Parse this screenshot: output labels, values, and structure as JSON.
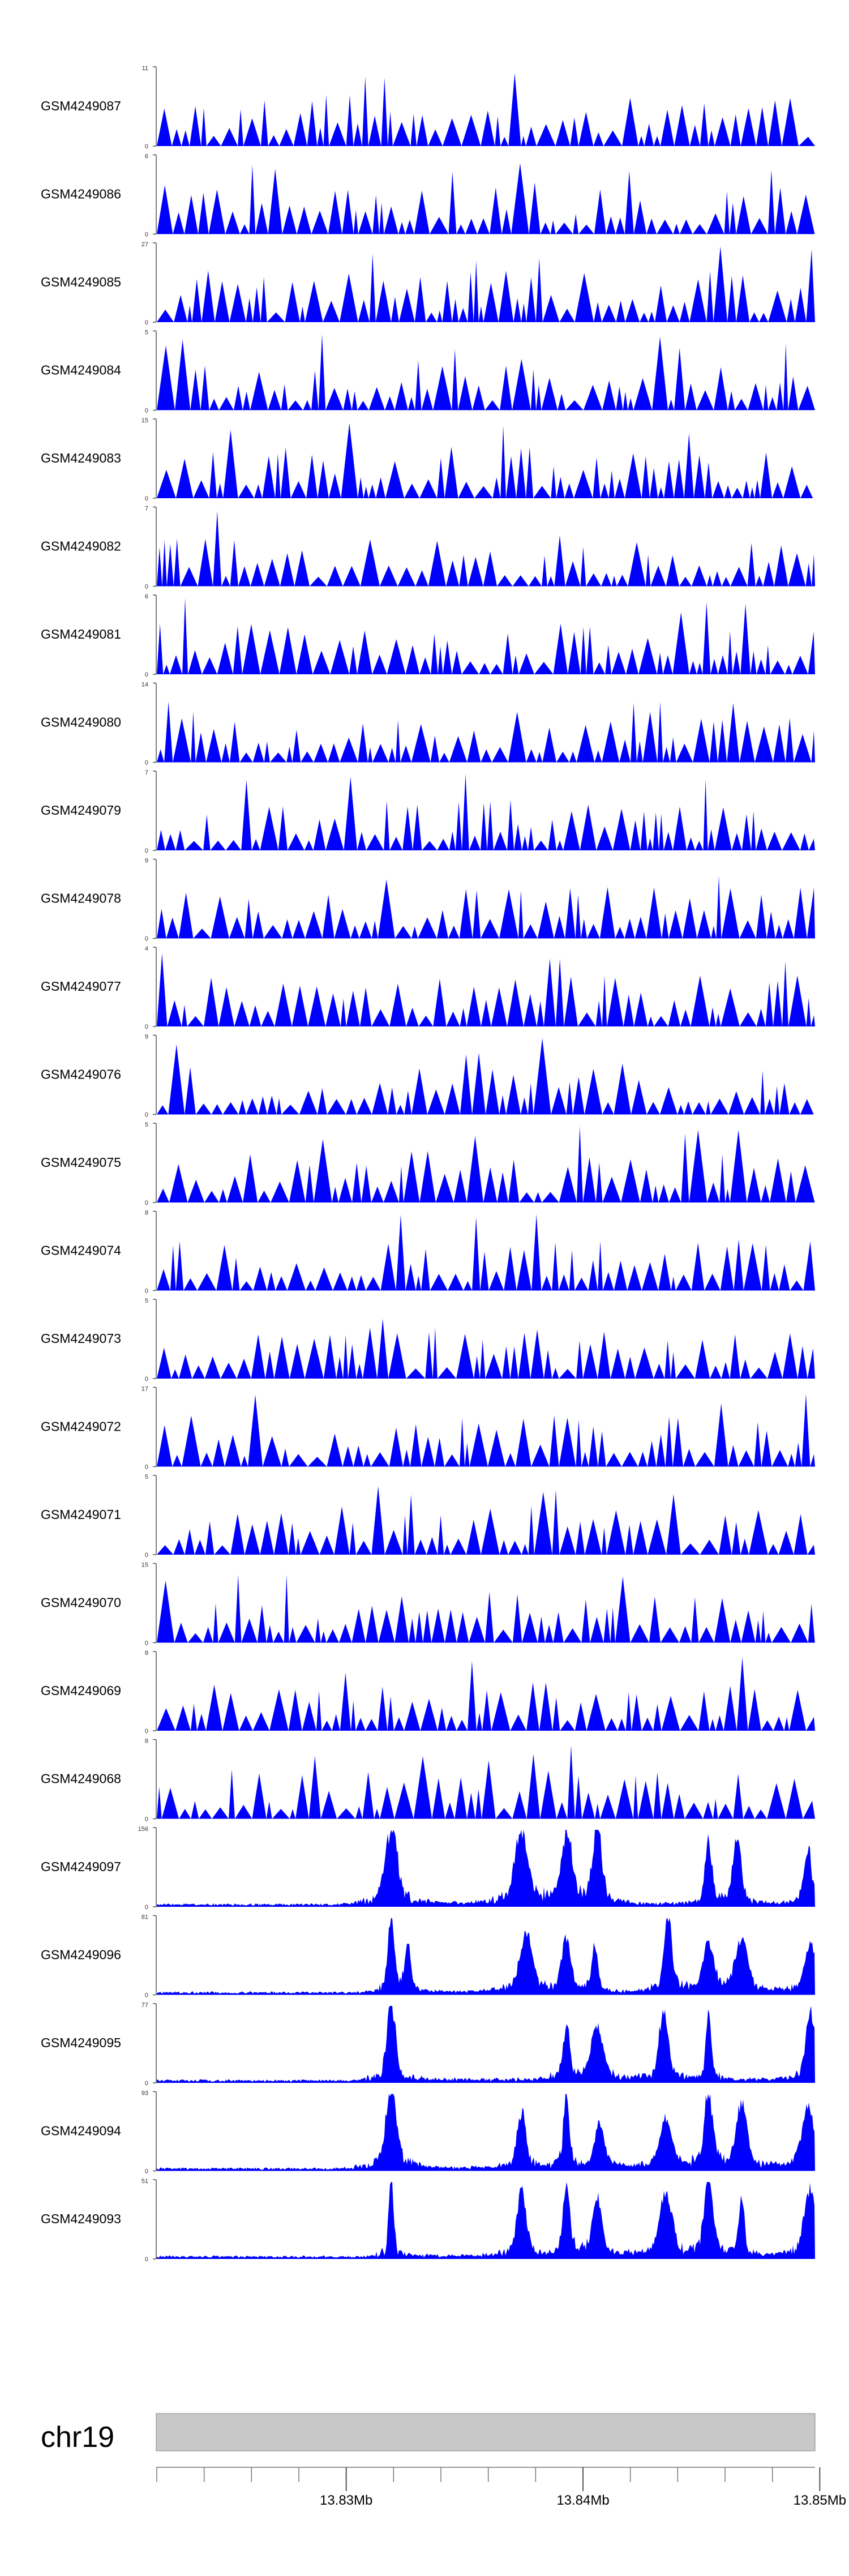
{
  "chart_data": {
    "type": "area",
    "x_axis": {
      "domain_bp": [
        13822000,
        13849800
      ],
      "ticks": [
        13830000,
        13840000,
        13850000
      ],
      "tick_labels": [
        "13.83Mb",
        "13.84Mb",
        "13.85Mb"
      ],
      "minor_tick_spacing_bp": 2000
    },
    "chromosome": "chr19",
    "fill_color": "#0000ff",
    "tracks": [
      {
        "name": "GSM4249087",
        "ymax": 11,
        "profile": "sparse"
      },
      {
        "name": "GSM4249086",
        "ymax": 6,
        "profile": "sparse"
      },
      {
        "name": "GSM4249085",
        "ymax": 27,
        "profile": "sparse"
      },
      {
        "name": "GSM4249084",
        "ymax": 5,
        "profile": "sparse"
      },
      {
        "name": "GSM4249083",
        "ymax": 15,
        "profile": "sparse"
      },
      {
        "name": "GSM4249082",
        "ymax": 7,
        "profile": "sparse"
      },
      {
        "name": "GSM4249081",
        "ymax": 6,
        "profile": "sparse"
      },
      {
        "name": "GSM4249080",
        "ymax": 14,
        "profile": "sparse"
      },
      {
        "name": "GSM4249079",
        "ymax": 7,
        "profile": "sparse"
      },
      {
        "name": "GSM4249078",
        "ymax": 9,
        "profile": "sparse"
      },
      {
        "name": "GSM4249077",
        "ymax": 4,
        "profile": "sparse"
      },
      {
        "name": "GSM4249076",
        "ymax": 9,
        "profile": "sparse"
      },
      {
        "name": "GSM4249075",
        "ymax": 5,
        "profile": "sparse"
      },
      {
        "name": "GSM4249074",
        "ymax": 8,
        "profile": "sparse"
      },
      {
        "name": "GSM4249073",
        "ymax": 5,
        "profile": "sparse"
      },
      {
        "name": "GSM4249072",
        "ymax": 17,
        "profile": "sparse"
      },
      {
        "name": "GSM4249071",
        "ymax": 5,
        "profile": "sparse"
      },
      {
        "name": "GSM4249070",
        "ymax": 15,
        "profile": "sparse"
      },
      {
        "name": "GSM4249069",
        "ymax": 8,
        "profile": "sparse"
      },
      {
        "name": "GSM4249068",
        "ymax": 8,
        "profile": "sparse"
      },
      {
        "name": "GSM4249097",
        "ymax": 156,
        "profile": "dense",
        "peaks_bp": [
          13831900,
          13837400,
          13839300,
          13840600,
          13845300,
          13846500,
          13849500
        ]
      },
      {
        "name": "GSM4249096",
        "ymax": 81,
        "profile": "dense",
        "peaks_bp": [
          13831900,
          13832600,
          13837600,
          13839300,
          13840500,
          13843600,
          13845300,
          13846700,
          13849600
        ]
      },
      {
        "name": "GSM4249095",
        "ymax": 77,
        "profile": "dense",
        "peaks_bp": [
          13831900,
          13839300,
          13840600,
          13843400,
          13845300,
          13849600
        ]
      },
      {
        "name": "GSM4249094",
        "ymax": 93,
        "profile": "dense",
        "peaks_bp": [
          13831900,
          13837400,
          13839300,
          13840700,
          13843500,
          13845300,
          13846700,
          13849500
        ]
      },
      {
        "name": "GSM4249093",
        "ymax": 51,
        "profile": "dense",
        "peaks_bp": [
          13831900,
          13837400,
          13839300,
          13840600,
          13843500,
          13845300,
          13846700,
          13849600
        ]
      }
    ]
  }
}
